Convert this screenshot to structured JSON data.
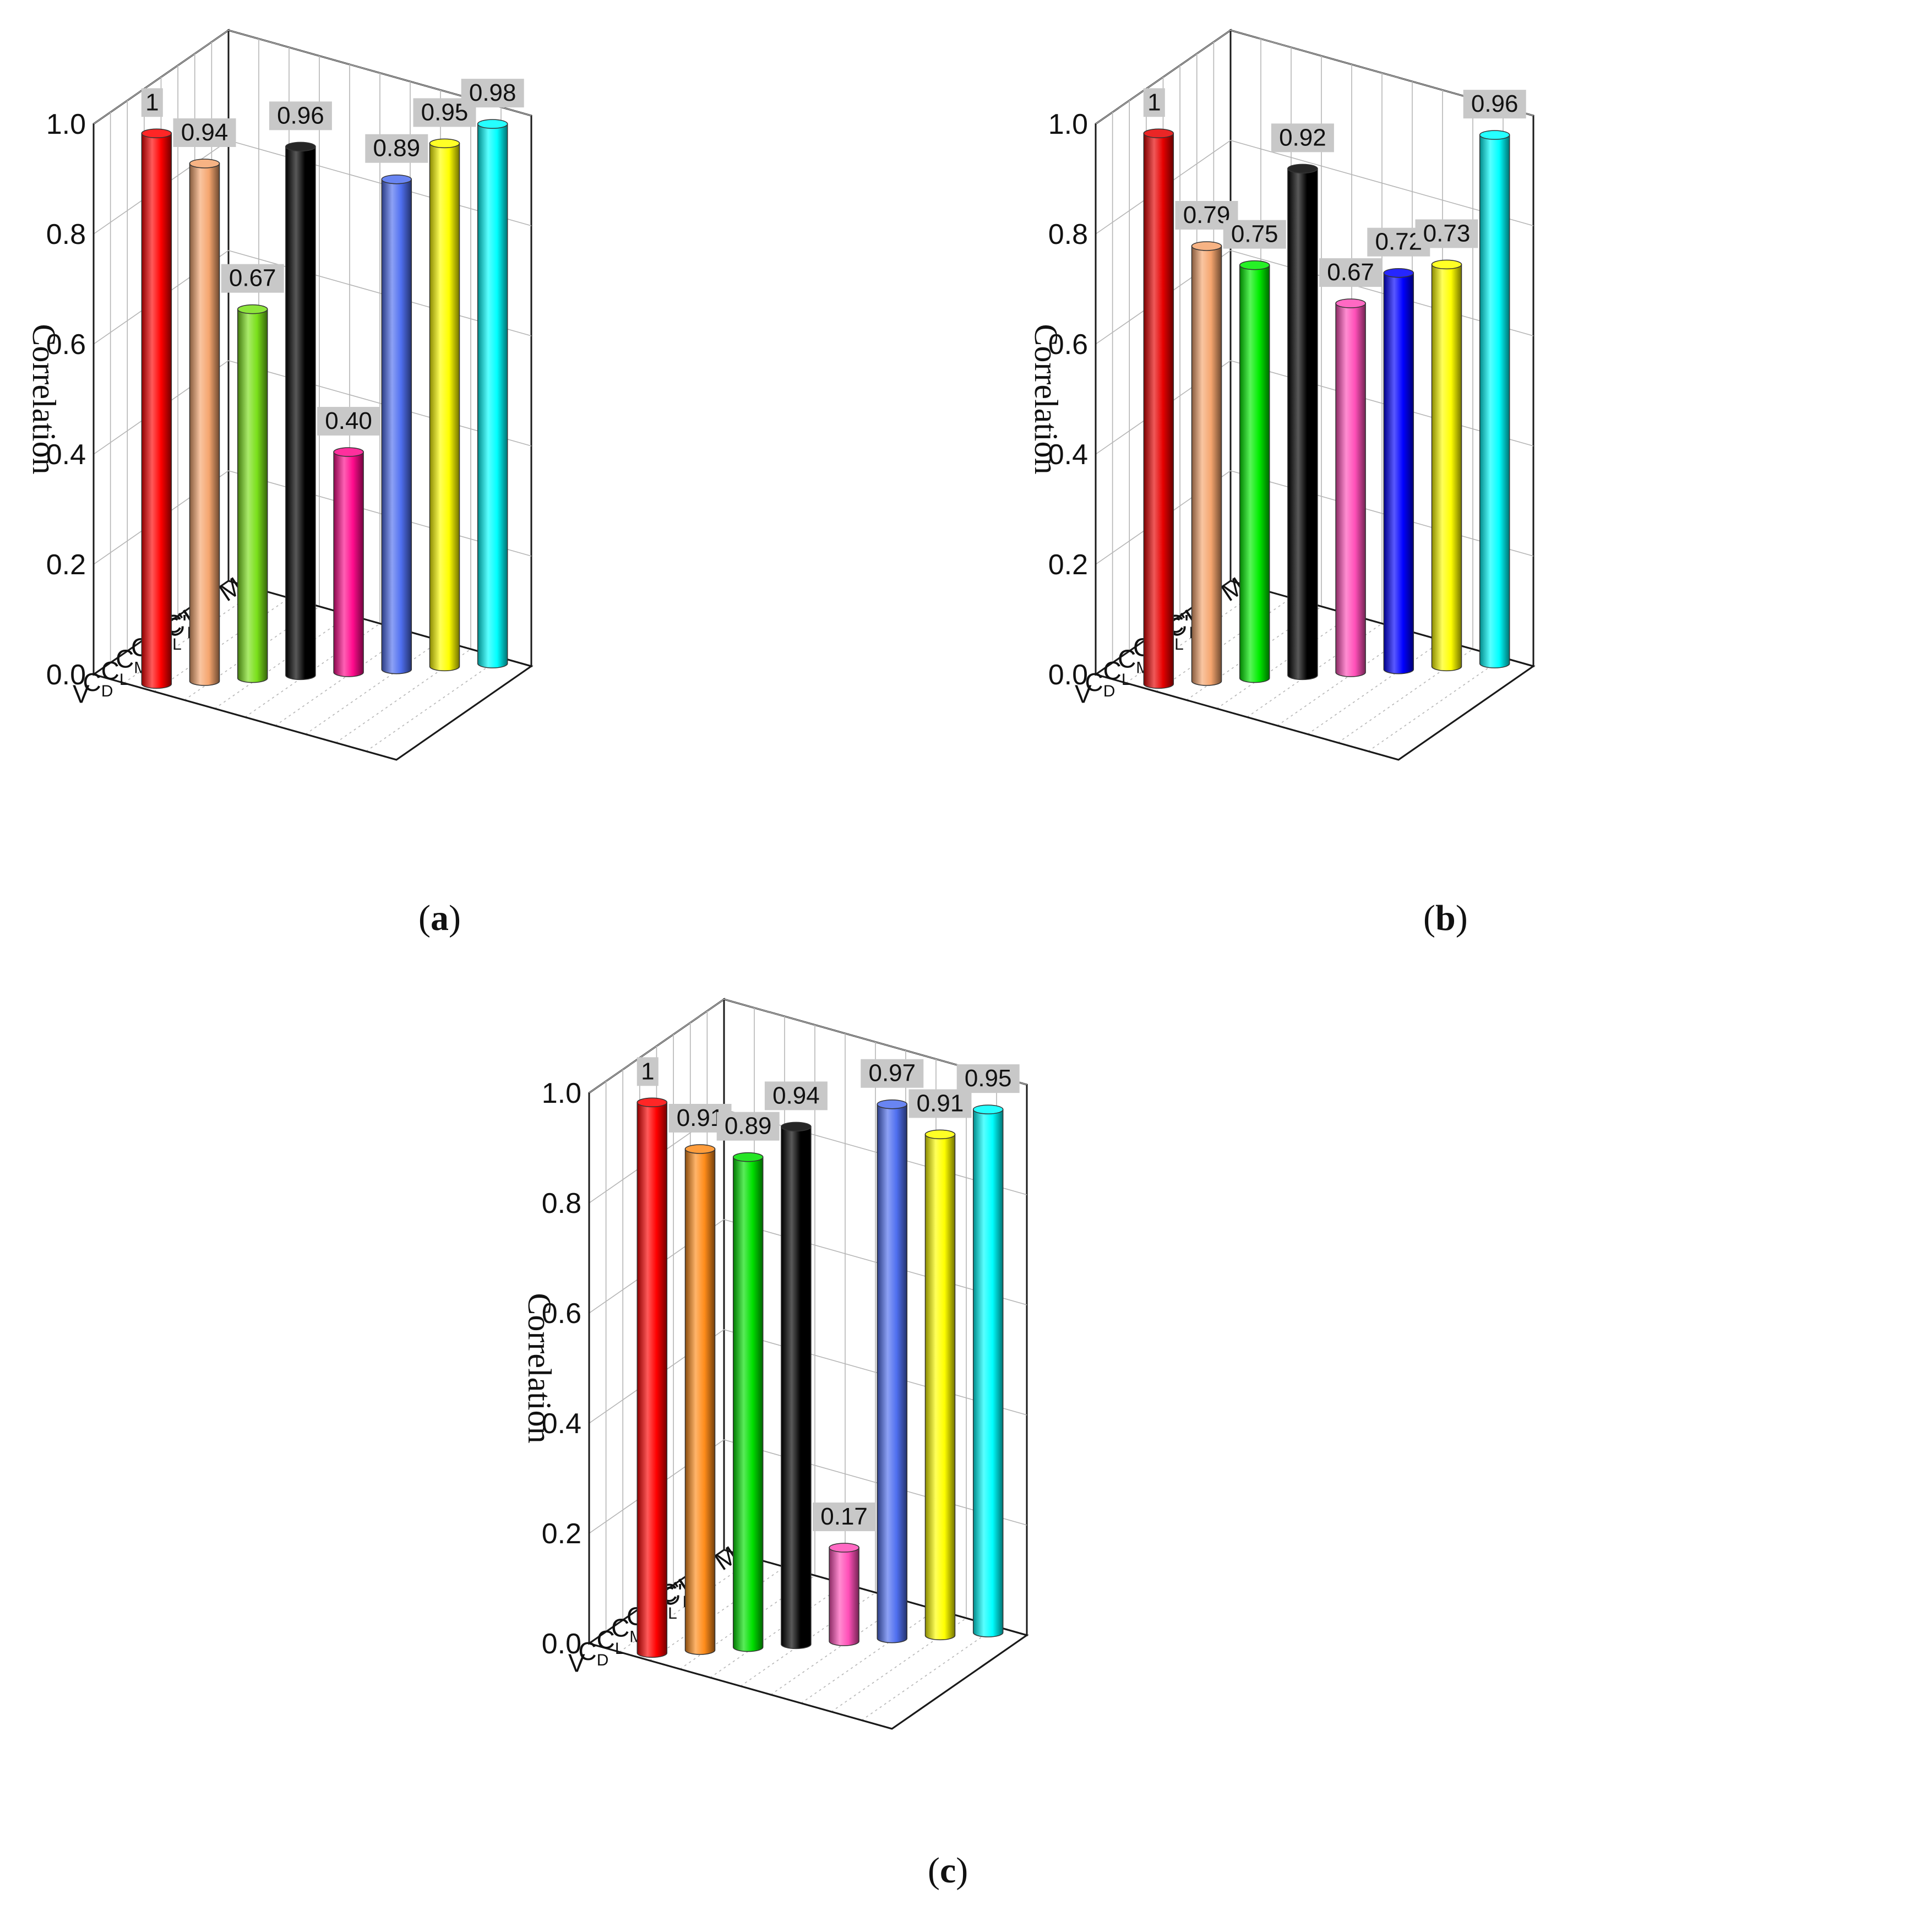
{
  "chart_data": [
    {
      "type": "bar",
      "panel": "a",
      "ylabel": "Correlation",
      "ylim": [
        0,
        1
      ],
      "yticks": [
        "0.0",
        "0.2",
        "0.4",
        "0.6",
        "0.8",
        "1.0"
      ],
      "categories": [
        "V",
        "C_D",
        "C_L",
        "C_M",
        "C'_D",
        "C'_L",
        "C'_M",
        "1/C'_L C'_M"
      ],
      "values": [
        1,
        0.94,
        0.67,
        0.96,
        0.4,
        0.89,
        0.95,
        0.98
      ],
      "value_labels": [
        "1",
        "0.94",
        "0.67",
        "0.96",
        "0.40",
        "0.89",
        "0.95",
        "0.98"
      ],
      "colors": [
        "#ff0000",
        "#f5a56e",
        "#7ae01a",
        "#000000",
        "#ff0a8c",
        "#4f6ff0",
        "#ffff00",
        "#00ffff"
      ]
    },
    {
      "type": "bar",
      "panel": "b",
      "ylabel": "Correlation",
      "ylim": [
        0,
        1
      ],
      "yticks": [
        "0.0",
        "0.2",
        "0.4",
        "0.6",
        "0.8",
        "1.0"
      ],
      "categories": [
        "V",
        "C_D",
        "C_L",
        "C_M",
        "C'_D",
        "C'_L",
        "C'_M",
        "1/C'_L C'_M"
      ],
      "values": [
        1,
        0.79,
        0.75,
        0.92,
        0.67,
        0.72,
        0.73,
        0.96
      ],
      "value_labels": [
        "1",
        "0.79",
        "0.75",
        "0.92",
        "0.67",
        "0.72",
        "0.73",
        "0.96"
      ],
      "colors": [
        "#e60000",
        "#f5a56e",
        "#00ee00",
        "#000000",
        "#ff4fb8",
        "#0000ff",
        "#ffff00",
        "#00ffff"
      ]
    },
    {
      "type": "bar",
      "panel": "c",
      "ylabel": "Correlation",
      "ylim": [
        0,
        1
      ],
      "yticks": [
        "0.0",
        "0.2",
        "0.4",
        "0.6",
        "0.8",
        "1.0"
      ],
      "categories": [
        "V",
        "C_D",
        "C_L",
        "C_M",
        "C'_D",
        "C'_L",
        "C'_M",
        "1/C'_L C'_M"
      ],
      "values": [
        1,
        0.91,
        0.89,
        0.94,
        0.17,
        0.97,
        0.91,
        0.95
      ],
      "value_labels": [
        "1",
        "0.91",
        "0.89",
        "0.94",
        "0.17",
        "0.97",
        "0.91",
        "0.95"
      ],
      "colors": [
        "#ff0000",
        "#ff8c1a",
        "#00e000",
        "#000000",
        "#ff4fb8",
        "#4f6ff0",
        "#ffff00",
        "#00ffff"
      ]
    }
  ],
  "captions": {
    "a": {
      "open": "(",
      "letter": "a",
      "close": ")"
    },
    "b": {
      "open": "(",
      "letter": "b",
      "close": ")"
    },
    "c": {
      "open": "(",
      "letter": "c",
      "close": ")"
    }
  }
}
